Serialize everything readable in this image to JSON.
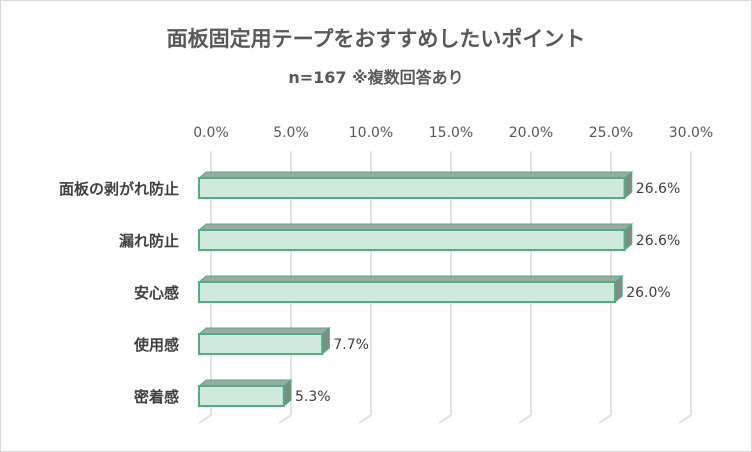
{
  "chart_data": {
    "type": "bar",
    "orientation": "horizontal",
    "style": "3d",
    "title": "面板固定用テープをおすすめしたいポイント",
    "subtitle": "n=167 ※複数回答あり",
    "categories": [
      "面板の剥がれ防止",
      "漏れ防止",
      "安心感",
      "使用感",
      "密着感"
    ],
    "values": [
      26.6,
      26.6,
      26.0,
      7.7,
      5.3
    ],
    "data_labels": [
      "26.6%",
      "26.6%",
      "26.0%",
      "7.7%",
      "5.3%"
    ],
    "xlim": [
      0,
      30
    ],
    "xticks": [
      "0.0%",
      "5.0%",
      "10.0%",
      "15.0%",
      "20.0%",
      "25.0%",
      "30.0%"
    ],
    "axis_position": "top",
    "grid": true,
    "colors": {
      "bar_face": "#cfe9dd",
      "bar_edge": "#4daf82",
      "bar_top": "#9fa8a3",
      "bar_side": "#7f8c86",
      "grid": "#d9d9d9"
    }
  }
}
